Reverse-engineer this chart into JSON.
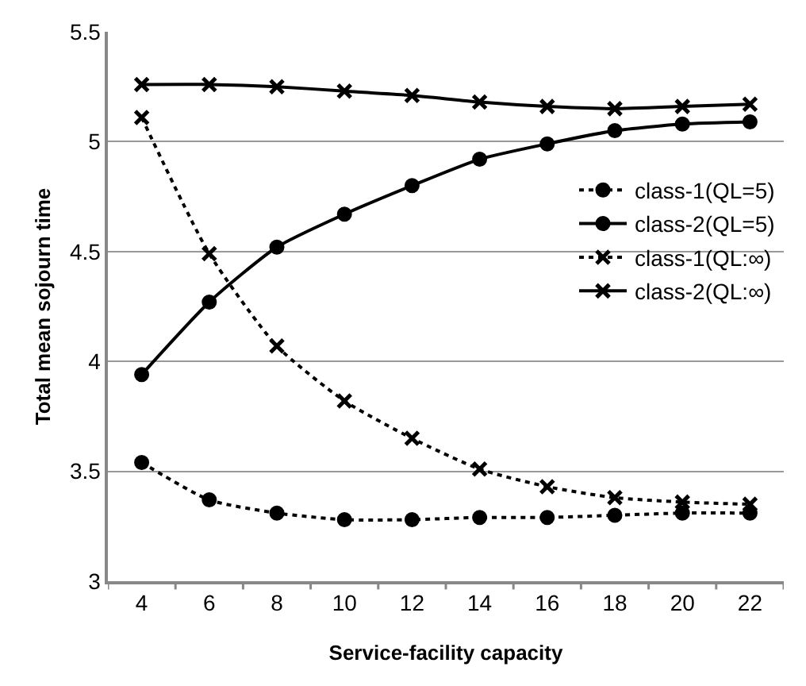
{
  "chart_data": {
    "type": "line",
    "xlabel": "Service-facility capacity",
    "ylabel": "Total mean sojourn time",
    "categories": [
      "4",
      "6",
      "8",
      "10",
      "12",
      "14",
      "16",
      "18",
      "20",
      "22"
    ],
    "series": [
      {
        "name": "class-1(QL=5)",
        "color": "#000000",
        "marker": "circle",
        "line_style": "dotted",
        "values": [
          3.54,
          3.37,
          3.31,
          3.28,
          3.28,
          3.29,
          3.29,
          3.3,
          3.31,
          3.31
        ]
      },
      {
        "name": "class-2(QL=5)",
        "color": "#000000",
        "marker": "circle",
        "line_style": "solid",
        "values": [
          3.94,
          4.27,
          4.52,
          4.67,
          4.8,
          4.92,
          4.99,
          5.05,
          5.08,
          5.09
        ]
      },
      {
        "name": "class-1(QL:∞)",
        "color": "#000000",
        "marker": "cross",
        "line_style": "dotted",
        "values": [
          5.11,
          4.49,
          4.07,
          3.82,
          3.65,
          3.51,
          3.43,
          3.38,
          3.36,
          3.35
        ]
      },
      {
        "name": "class-2(QL:∞)",
        "color": "#000000",
        "marker": "cross",
        "line_style": "solid",
        "values": [
          5.26,
          5.26,
          5.25,
          5.23,
          5.21,
          5.18,
          5.16,
          5.15,
          5.16,
          5.17
        ]
      }
    ],
    "ylim": [
      3,
      5.5
    ],
    "yticks": [
      3,
      3.5,
      4,
      4.5,
      5,
      5.5
    ],
    "grid": "y",
    "legend": "right"
  }
}
